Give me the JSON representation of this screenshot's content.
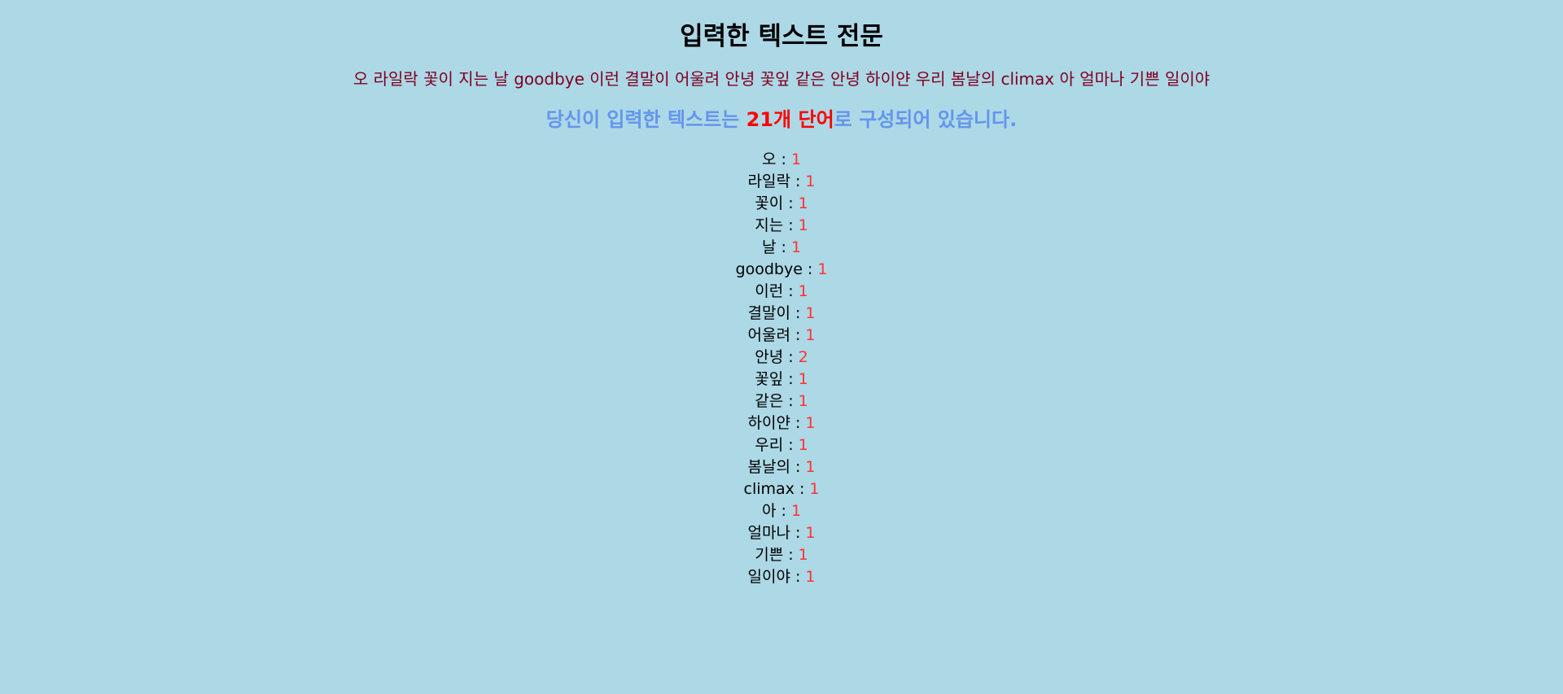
{
  "page": {
    "title": "입력한 텍스트 전문",
    "full_text": "오 라일락 꽃이 지는 날 goodbye 이런 결말이 어울려 안녕 꽃잎 같은 안녕 하이얀 우리 봄날의 climax 아 얼마나 기쁜 일이야",
    "summary": {
      "prefix": "당신이 입력한 텍스트는 ",
      "count_text": "21개 단어",
      "suffix": "로 구성되어 있습니다."
    },
    "separator": " : ",
    "words": [
      {
        "word": "오",
        "count": "1"
      },
      {
        "word": "라일락",
        "count": "1"
      },
      {
        "word": "꽃이",
        "count": "1"
      },
      {
        "word": "지는",
        "count": "1"
      },
      {
        "word": "날",
        "count": "1"
      },
      {
        "word": "goodbye",
        "count": "1"
      },
      {
        "word": "이런",
        "count": "1"
      },
      {
        "word": "결말이",
        "count": "1"
      },
      {
        "word": "어울려",
        "count": "1"
      },
      {
        "word": "안녕",
        "count": "2"
      },
      {
        "word": "꽃잎",
        "count": "1"
      },
      {
        "word": "같은",
        "count": "1"
      },
      {
        "word": "하이얀",
        "count": "1"
      },
      {
        "word": "우리",
        "count": "1"
      },
      {
        "word": "봄날의",
        "count": "1"
      },
      {
        "word": "climax",
        "count": "1"
      },
      {
        "word": "아",
        "count": "1"
      },
      {
        "word": "얼마나",
        "count": "1"
      },
      {
        "word": "기쁜",
        "count": "1"
      },
      {
        "word": "일이야",
        "count": "1"
      }
    ],
    "colors": {
      "background": "#add8e6",
      "full_text": "#800020",
      "summary": "#6495ed",
      "highlight": "#ff0000",
      "count": "#ff3333"
    }
  }
}
